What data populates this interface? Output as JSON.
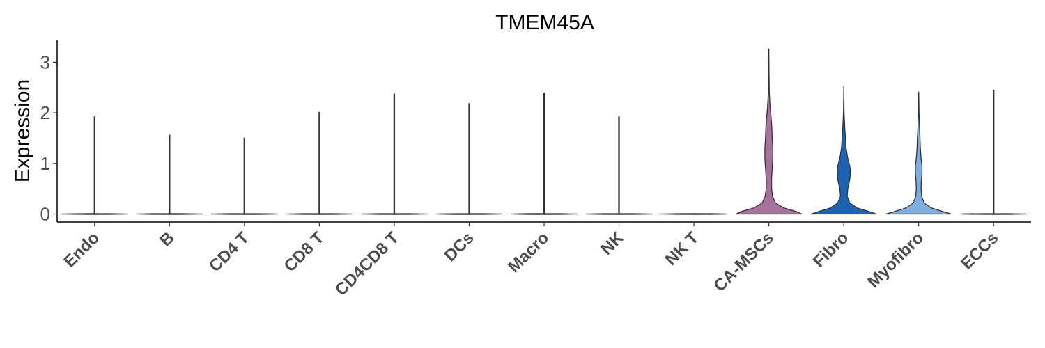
{
  "chart_data": {
    "type": "violin",
    "title": "TMEM45A",
    "ylabel": "Expression",
    "xlabel": "",
    "ylim": [
      -0.15,
      3.4
    ],
    "yticks": [
      0,
      1,
      2,
      3
    ],
    "categories": [
      "Endo",
      "B",
      "CD4 T",
      "CD8 T",
      "CD4CD8 T",
      "DCs",
      "Macro",
      "NK",
      "NK T",
      "CA-MSCs",
      "Fibro",
      "Myofibro",
      "ECCs"
    ],
    "max_values": [
      1.92,
      1.56,
      1.5,
      2.01,
      2.37,
      2.18,
      2.39,
      1.92,
      0.0,
      3.27,
      2.53,
      2.42,
      2.45
    ],
    "colors": [
      "#ffffff",
      "#ffffff",
      "#ffffff",
      "#ffffff",
      "#ffffff",
      "#ffffff",
      "#ffffff",
      "#ffffff",
      "#ffffff",
      "#a8729f",
      "#1b64b4",
      "#7eaee0",
      "#ffffff"
    ],
    "density_profiles": [
      [],
      [],
      [],
      [],
      [],
      [],
      [],
      [],
      [],
      [
        [
          0.0,
          0.98
        ],
        [
          0.05,
          0.82
        ],
        [
          0.12,
          0.45
        ],
        [
          0.22,
          0.2
        ],
        [
          0.35,
          0.11
        ],
        [
          0.5,
          0.08
        ],
        [
          0.7,
          0.08
        ],
        [
          0.9,
          0.1
        ],
        [
          1.1,
          0.12
        ],
        [
          1.3,
          0.12
        ],
        [
          1.5,
          0.1
        ],
        [
          1.7,
          0.09
        ],
        [
          1.9,
          0.07
        ],
        [
          2.1,
          0.04
        ],
        [
          2.4,
          0.015
        ],
        [
          2.8,
          0.005
        ],
        [
          3.27,
          0.0
        ]
      ],
      [
        [
          0.0,
          0.98
        ],
        [
          0.05,
          0.75
        ],
        [
          0.12,
          0.4
        ],
        [
          0.22,
          0.18
        ],
        [
          0.35,
          0.1
        ],
        [
          0.5,
          0.12
        ],
        [
          0.65,
          0.17
        ],
        [
          0.8,
          0.2
        ],
        [
          0.95,
          0.18
        ],
        [
          1.1,
          0.12
        ],
        [
          1.3,
          0.07
        ],
        [
          1.5,
          0.05
        ],
        [
          1.7,
          0.03
        ],
        [
          2.0,
          0.01
        ],
        [
          2.3,
          0.004
        ],
        [
          2.53,
          0.0
        ]
      ],
      [
        [
          0.0,
          0.98
        ],
        [
          0.05,
          0.72
        ],
        [
          0.12,
          0.38
        ],
        [
          0.22,
          0.16
        ],
        [
          0.35,
          0.09
        ],
        [
          0.5,
          0.07
        ],
        [
          0.65,
          0.08
        ],
        [
          0.8,
          0.1
        ],
        [
          0.95,
          0.1
        ],
        [
          1.1,
          0.07
        ],
        [
          1.3,
          0.05
        ],
        [
          1.5,
          0.04
        ],
        [
          1.7,
          0.025
        ],
        [
          2.0,
          0.01
        ],
        [
          2.42,
          0.0
        ]
      ],
      []
    ]
  }
}
